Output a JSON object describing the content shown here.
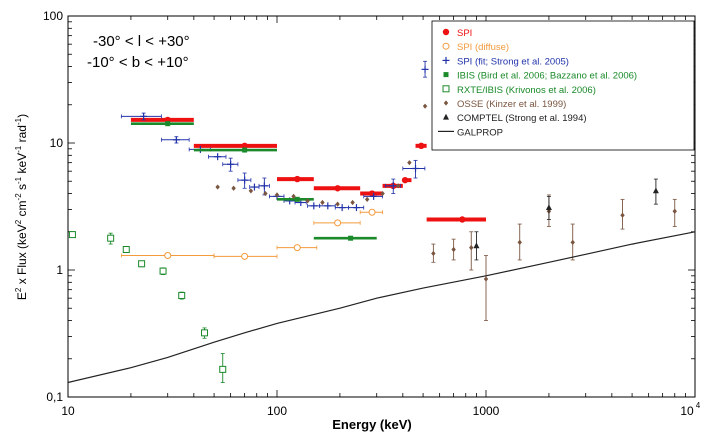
{
  "chart_data": {
    "type": "scatter",
    "title": "",
    "xlabel": "Energy (keV)",
    "ylabel": "E² x Flux (keV² cm⁻² s⁻¹ keV⁻¹ rad⁻¹)",
    "ylabel_parts": {
      "a": "E",
      "a_sup": "2",
      "b": " x Flux (keV",
      "b_sup": "2",
      "c": " cm",
      "c_sup": "-2",
      "d": " s",
      "d_sup": "-1",
      "e": " keV",
      "e_sup": "-1",
      "f": " rad",
      "f_sup": "-1",
      "g": ")"
    },
    "xscale": "log",
    "yscale": "log",
    "xlim": [
      10,
      10000
    ],
    "ylim": [
      0.1,
      100
    ],
    "x_ticks": [
      {
        "value": 10,
        "label": "10"
      },
      {
        "value": 100,
        "label": "100"
      },
      {
        "value": 1000,
        "label": "1000"
      }
    ],
    "x_tick_last": {
      "value": 10000,
      "base": "10",
      "exp": "4"
    },
    "y_ticks": [
      {
        "value": 0.1,
        "label": "0,1"
      },
      {
        "value": 1,
        "label": "1"
      },
      {
        "value": 10,
        "label": "10"
      },
      {
        "value": 100,
        "label": "100"
      }
    ],
    "annotations": [
      "-30° < l < +30°",
      "-10° < b < +10°"
    ],
    "legend_position": "top-right",
    "series": [
      {
        "name": "SPI",
        "color": "#ee1111",
        "marker": "filled-circle",
        "style": "hbar",
        "points": [
          {
            "x": 30,
            "y": 15.2,
            "xlo": 20,
            "xhi": 40
          },
          {
            "x": 70,
            "y": 9.5,
            "xlo": 40,
            "xhi": 100
          },
          {
            "x": 125,
            "y": 5.2,
            "xlo": 100,
            "xhi": 150
          },
          {
            "x": 195,
            "y": 4.4,
            "xlo": 150,
            "xhi": 250
          },
          {
            "x": 285,
            "y": 4.0,
            "xlo": 250,
            "xhi": 320
          },
          {
            "x": 360,
            "y": 4.6,
            "xlo": 320,
            "xhi": 400
          },
          {
            "x": 410,
            "y": 5.1,
            "xlo": 400,
            "xhi": 440
          },
          {
            "x": 490,
            "y": 9.5,
            "xlo": 460,
            "xhi": 520
          },
          {
            "x": 770,
            "y": 2.5,
            "xlo": 520,
            "xhi": 1000
          }
        ]
      },
      {
        "name": "SPI (diffuse)",
        "color": "#f29a3c",
        "marker": "open-circle",
        "style": "thin",
        "points": [
          {
            "x": 30,
            "y": 1.3,
            "xlo": 18,
            "xhi": 50
          },
          {
            "x": 70,
            "y": 1.28,
            "xlo": 50,
            "xhi": 100
          },
          {
            "x": 125,
            "y": 1.5,
            "xlo": 100,
            "xhi": 155
          },
          {
            "x": 195,
            "y": 2.35,
            "xlo": 150,
            "xhi": 250
          },
          {
            "x": 285,
            "y": 2.85,
            "xlo": 250,
            "xhi": 320
          }
        ]
      },
      {
        "name": "SPI (fit; Strong et al. 2005)",
        "color": "#2233aa",
        "marker": "plus",
        "style": "thin",
        "points": [
          {
            "x": 23,
            "y": 16.2,
            "xlo": 18,
            "xhi": 28,
            "ylo": 15.2,
            "yhi": 17.2
          },
          {
            "x": 33,
            "y": 10.6,
            "xlo": 28,
            "xhi": 38,
            "ylo": 10,
            "yhi": 11.2
          },
          {
            "x": 43,
            "y": 8.9,
            "xlo": 38,
            "xhi": 48
          },
          {
            "x": 52,
            "y": 7.8,
            "xlo": 47,
            "xhi": 57
          },
          {
            "x": 60,
            "y": 6.8,
            "xlo": 55,
            "xhi": 65,
            "ylo": 6.0,
            "yhi": 7.6
          },
          {
            "x": 70,
            "y": 5.1,
            "xlo": 65,
            "xhi": 75,
            "ylo": 4.4,
            "yhi": 5.8
          },
          {
            "x": 78,
            "y": 4.5,
            "xlo": 74,
            "xhi": 82
          },
          {
            "x": 87,
            "y": 4.6,
            "xlo": 82,
            "xhi": 92,
            "ylo": 3.9,
            "yhi": 5.3
          },
          {
            "x": 100,
            "y": 3.8,
            "xlo": 92,
            "xhi": 108
          },
          {
            "x": 115,
            "y": 3.5,
            "xlo": 108,
            "xhi": 122
          },
          {
            "x": 130,
            "y": 3.4,
            "xlo": 122,
            "xhi": 138
          },
          {
            "x": 150,
            "y": 3.2,
            "xlo": 140,
            "xhi": 160
          },
          {
            "x": 175,
            "y": 3.2,
            "xlo": 160,
            "xhi": 190
          },
          {
            "x": 205,
            "y": 3.1,
            "xlo": 190,
            "xhi": 220
          },
          {
            "x": 240,
            "y": 3.1,
            "xlo": 220,
            "xhi": 260
          },
          {
            "x": 290,
            "y": 3.8,
            "xlo": 260,
            "xhi": 320
          },
          {
            "x": 360,
            "y": 4.6,
            "xlo": 330,
            "xhi": 390,
            "ylo": 4.0,
            "yhi": 5.2
          },
          {
            "x": 460,
            "y": 6.3,
            "xlo": 400,
            "xhi": 510,
            "ylo": 5.3,
            "yhi": 7.3
          },
          {
            "x": 511,
            "y": 38,
            "ylo": 33,
            "yhi": 44
          }
        ]
      },
      {
        "name": "IBIS (Bird et al. 2006; Bazzano et al. 2006)",
        "color": "#1a8a2a",
        "marker": "filled-square",
        "style": "thick",
        "points": [
          {
            "x": 30,
            "y": 14.2,
            "xlo": 20,
            "xhi": 40
          },
          {
            "x": 70,
            "y": 8.8,
            "xlo": 40,
            "xhi": 100
          },
          {
            "x": 125,
            "y": 3.6,
            "xlo": 100,
            "xhi": 150
          },
          {
            "x": 225,
            "y": 1.78,
            "xlo": 150,
            "xhi": 300
          }
        ]
      },
      {
        "name": "RXTE/IBIS (Krivonos et al. 2006)",
        "color": "#1a8a2a",
        "marker": "open-square",
        "style": "thin",
        "points": [
          {
            "x": 10.5,
            "y": 1.9,
            "ylo": 1.8,
            "yhi": 2.0
          },
          {
            "x": 16,
            "y": 1.78,
            "ylo": 1.6,
            "yhi": 1.95
          },
          {
            "x": 19,
            "y": 1.45,
            "ylo": 1.38,
            "yhi": 1.52
          },
          {
            "x": 22.5,
            "y": 1.12,
            "ylo": 1.06,
            "yhi": 1.18
          },
          {
            "x": 28.5,
            "y": 0.98,
            "ylo": 0.92,
            "yhi": 1.04
          },
          {
            "x": 35,
            "y": 0.63,
            "ylo": 0.59,
            "yhi": 0.67
          },
          {
            "x": 45,
            "y": 0.32,
            "ylo": 0.29,
            "yhi": 0.35
          },
          {
            "x": 55,
            "y": 0.165,
            "ylo": 0.13,
            "yhi": 0.22
          }
        ]
      },
      {
        "name": "OSSE (Kinzer et al. 1999)",
        "color": "#7a5540",
        "marker": "diamond",
        "style": "thin",
        "points": [
          {
            "x": 52,
            "y": 4.5
          },
          {
            "x": 62,
            "y": 4.4
          },
          {
            "x": 75,
            "y": 4.2
          },
          {
            "x": 88,
            "y": 4.0
          },
          {
            "x": 100,
            "y": 3.9
          },
          {
            "x": 120,
            "y": 3.8
          },
          {
            "x": 140,
            "y": 3.5
          },
          {
            "x": 165,
            "y": 3.4
          },
          {
            "x": 195,
            "y": 3.3
          },
          {
            "x": 230,
            "y": 3.4
          },
          {
            "x": 270,
            "y": 3.6
          },
          {
            "x": 320,
            "y": 4.0
          },
          {
            "x": 380,
            "y": 4.6
          },
          {
            "x": 430,
            "y": 7.0
          },
          {
            "x": 511,
            "y": 19.5
          },
          {
            "x": 560,
            "y": 1.35,
            "ylo": 1.15,
            "yhi": 1.6
          },
          {
            "x": 700,
            "y": 1.45,
            "ylo": 1.2,
            "yhi": 1.75
          },
          {
            "x": 850,
            "y": 1.5,
            "ylo": 1.0,
            "yhi": 2.0
          },
          {
            "x": 1000,
            "y": 0.85,
            "ylo": 0.4,
            "yhi": 1.3
          },
          {
            "x": 1450,
            "y": 1.65,
            "ylo": 1.2,
            "yhi": 2.3
          },
          {
            "x": 2000,
            "y": 2.9,
            "ylo": 2.2,
            "yhi": 3.9
          },
          {
            "x": 2600,
            "y": 1.65,
            "ylo": 1.2,
            "yhi": 2.3
          },
          {
            "x": 4500,
            "y": 2.7,
            "ylo": 2.1,
            "yhi": 3.6
          },
          {
            "x": 8000,
            "y": 2.9,
            "ylo": 2.2,
            "yhi": 3.6
          }
        ]
      },
      {
        "name": "COMPTEL (Strong et al. 1994)",
        "color": "#222222",
        "marker": "triangle",
        "style": "thin",
        "points": [
          {
            "x": 900,
            "y": 1.55,
            "ylo": 1.2,
            "yhi": 2.0
          },
          {
            "x": 2000,
            "y": 3.1,
            "ylo": 2.5,
            "yhi": 3.8
          },
          {
            "x": 6500,
            "y": 4.2,
            "ylo": 3.3,
            "yhi": 5.2
          }
        ]
      },
      {
        "name": "GALPROP",
        "color": "#222222",
        "marker": "line",
        "style": "line",
        "points": [
          {
            "x": 10,
            "y": 0.13
          },
          {
            "x": 20,
            "y": 0.17
          },
          {
            "x": 30,
            "y": 0.205
          },
          {
            "x": 50,
            "y": 0.27
          },
          {
            "x": 70,
            "y": 0.32
          },
          {
            "x": 100,
            "y": 0.38
          },
          {
            "x": 200,
            "y": 0.5
          },
          {
            "x": 300,
            "y": 0.6
          },
          {
            "x": 500,
            "y": 0.72
          },
          {
            "x": 1000,
            "y": 0.9
          },
          {
            "x": 2000,
            "y": 1.15
          },
          {
            "x": 3000,
            "y": 1.33
          },
          {
            "x": 5000,
            "y": 1.6
          },
          {
            "x": 10000,
            "y": 2.0
          }
        ]
      }
    ]
  }
}
